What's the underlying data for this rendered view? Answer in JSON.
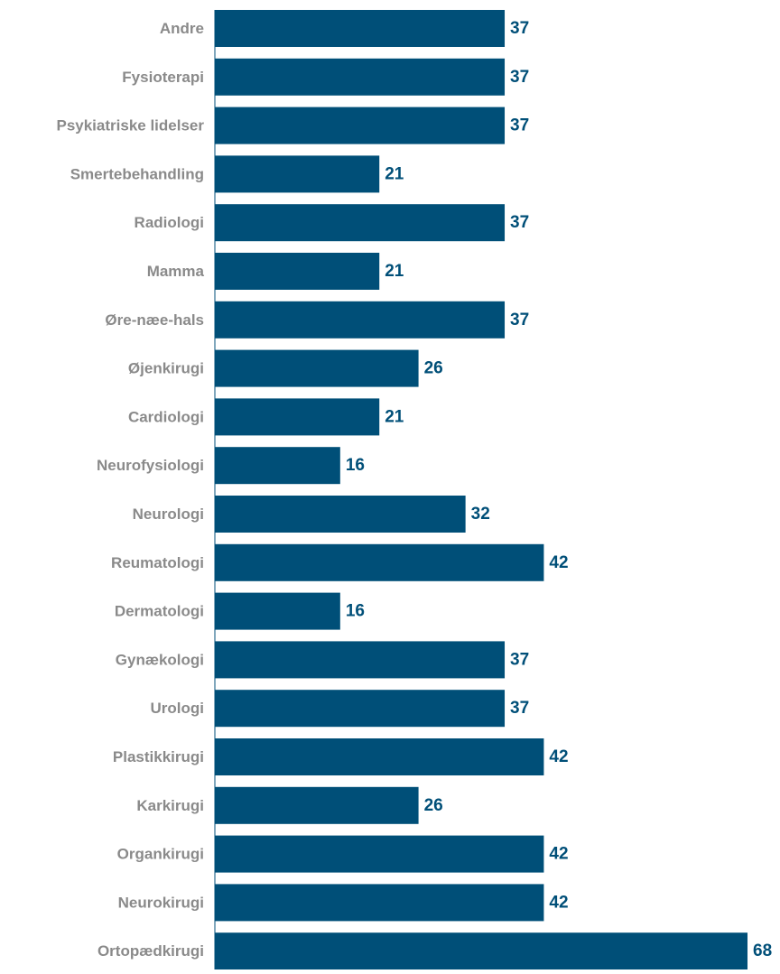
{
  "chart_data": {
    "type": "bar",
    "orientation": "horizontal",
    "categories": [
      "Andre",
      "Fysioterapi",
      "Psykiatriske lidelser",
      "Smertebehandling",
      "Radiologi",
      "Mamma",
      "Øre-næe-hals",
      "Øjenkirugi",
      "Cardiologi",
      "Neurofysiologi",
      "Neurologi",
      "Reumatologi",
      "Dermatologi",
      "Gynækologi",
      "Urologi",
      "Plastikkirugi",
      "Karkirugi",
      "Organkirugi",
      "Neurokirugi",
      "Ortopædkirugi"
    ],
    "values": [
      37,
      37,
      37,
      21,
      37,
      21,
      37,
      26,
      21,
      16,
      32,
      42,
      16,
      37,
      37,
      42,
      26,
      42,
      42,
      68
    ],
    "value_labels": [
      "37",
      "37",
      "37",
      "21",
      "37",
      "21",
      "37",
      "26",
      "21",
      "16",
      "32",
      "42",
      "16",
      "37",
      "37",
      "42",
      "26",
      "42",
      "42",
      "68"
    ],
    "xlim": [
      0,
      68
    ],
    "grid": false,
    "legend": "none",
    "colors": {
      "bar": "#004f78",
      "value_label": "#004f78",
      "category_label": "#8a8a8a",
      "axis": "#004f78"
    }
  }
}
